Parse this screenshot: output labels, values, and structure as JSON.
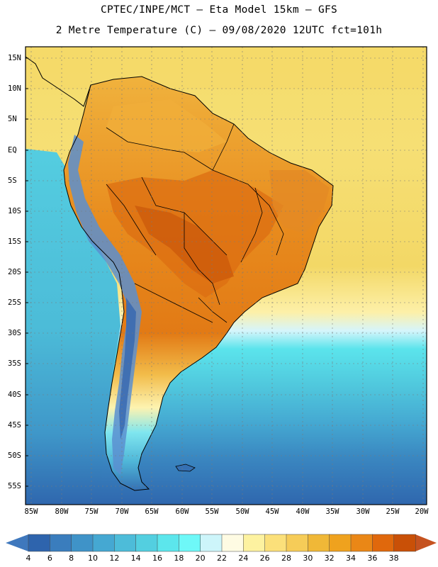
{
  "title": {
    "line1": "CPTEC/INPE/MCT –   Eta Model 15km – GFS",
    "line2": "2 Metre Temperature (C) – 09/08/2020 12UTC fct=101h"
  },
  "lat_labels": [
    "15N",
    "10N",
    "5N",
    "EQ",
    "5S",
    "10S",
    "15S",
    "20S",
    "25S",
    "30S",
    "35S",
    "40S",
    "45S",
    "50S",
    "55S"
  ],
  "lon_labels": [
    "85W",
    "80W",
    "75W",
    "70W",
    "65W",
    "60W",
    "55W",
    "50W",
    "45W",
    "40W",
    "35W",
    "30W",
    "25W",
    "20W"
  ],
  "colorbar": {
    "labels": [
      "4",
      "6",
      "8",
      "10",
      "12",
      "14",
      "16",
      "18",
      "20",
      "22",
      "24",
      "26",
      "28",
      "30",
      "32",
      "34",
      "36",
      "38"
    ],
    "colors": [
      "#2e64ad",
      "#3a7dbd",
      "#3f93c8",
      "#45a8d2",
      "#4dbcd9",
      "#53cfe0",
      "#5ce6ec",
      "#6ef8f8",
      "#cdf5fa",
      "#fefbe3",
      "#fdf2a0",
      "#fbe07a",
      "#f6cc58",
      "#f0b837",
      "#efa21e",
      "#ea8716",
      "#e0680c",
      "#c95007"
    ],
    "low_color": "#3f78bd",
    "high_color": "#c5521f"
  },
  "map_colors": {
    "background": "#f3dc6d",
    "ocean_north": "#f4dc6b",
    "pacific_warm": "#50c2da",
    "pacific_cool": "#3f97c9",
    "south_ocean": "#2f67ae",
    "atlantic_mid": "#5be4ec",
    "atlantic_pale": "#d6f5fb",
    "land_hot": "#e58a1c",
    "land_warm": "#efa83a",
    "land_mild": "#f7c75a",
    "andes_cold": "#5b8fd0",
    "frame": "#000000"
  }
}
